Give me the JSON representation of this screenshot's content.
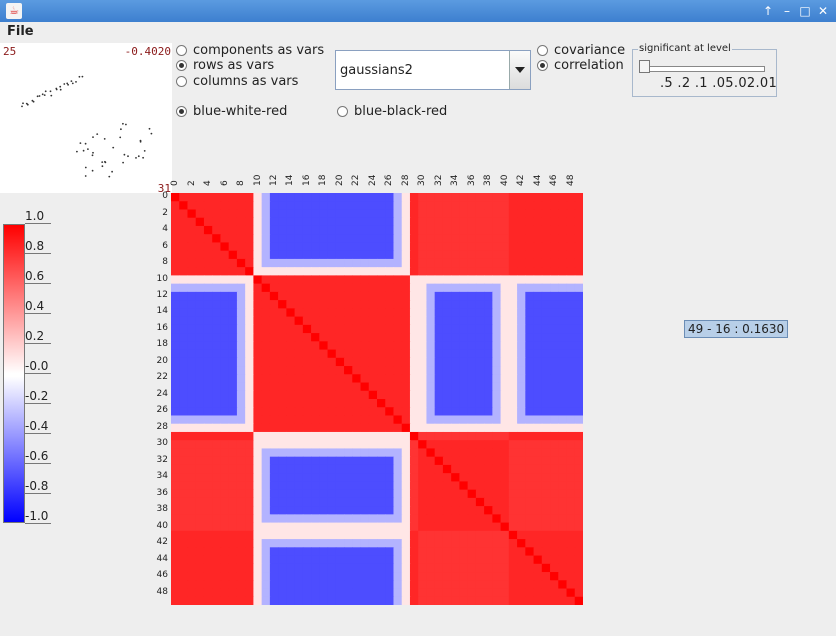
{
  "window": {
    "app_icon": "java-icon",
    "buttons": [
      "↑",
      "–",
      "□",
      "✕"
    ]
  },
  "menu": {
    "file": "File"
  },
  "preview": {
    "left_value": "25",
    "right_value": "-0.4020",
    "bottom_value": "31"
  },
  "var_mode": [
    {
      "label": "components as vars",
      "selected": false
    },
    {
      "label": "rows as vars",
      "selected": true
    },
    {
      "label": "columns as vars",
      "selected": false
    }
  ],
  "dataset": {
    "selected": "gaussians2"
  },
  "stat": [
    {
      "label": "covariance",
      "selected": false
    },
    {
      "label": "correlation",
      "selected": true
    }
  ],
  "colormap": [
    {
      "label": "blue-white-red",
      "selected": true
    },
    {
      "label": "blue-black-red",
      "selected": false
    }
  ],
  "significance": {
    "title": "significant at level",
    "levels": ".5 .2 .1 .05.02.01",
    "slider_value": 0
  },
  "legend": {
    "labels": [
      "1.0",
      "0.8",
      "0.6",
      "0.4",
      "0.2",
      "-0.0",
      "-0.2",
      "-0.4",
      "-0.6",
      "-0.8",
      "-1.0"
    ]
  },
  "heatmap": {
    "x_ticks": [
      "0",
      "2",
      "4",
      "6",
      "8",
      "10",
      "12",
      "14",
      "16",
      "18",
      "20",
      "22",
      "24",
      "26",
      "28",
      "30",
      "32",
      "34",
      "36",
      "38",
      "40",
      "42",
      "44",
      "46",
      "48"
    ],
    "y_ticks": [
      "0",
      "2",
      "4",
      "6",
      "8",
      "10",
      "12",
      "14",
      "16",
      "18",
      "20",
      "22",
      "24",
      "26",
      "28",
      "30",
      "32",
      "34",
      "36",
      "38",
      "40",
      "42",
      "44",
      "46",
      "48"
    ],
    "size": 50
  },
  "tooltip": {
    "text": "49 - 16 : 0.1630"
  },
  "colors": {
    "positive": "#ff0000",
    "neutral": "#ffffff",
    "negative": "#0000ff"
  }
}
